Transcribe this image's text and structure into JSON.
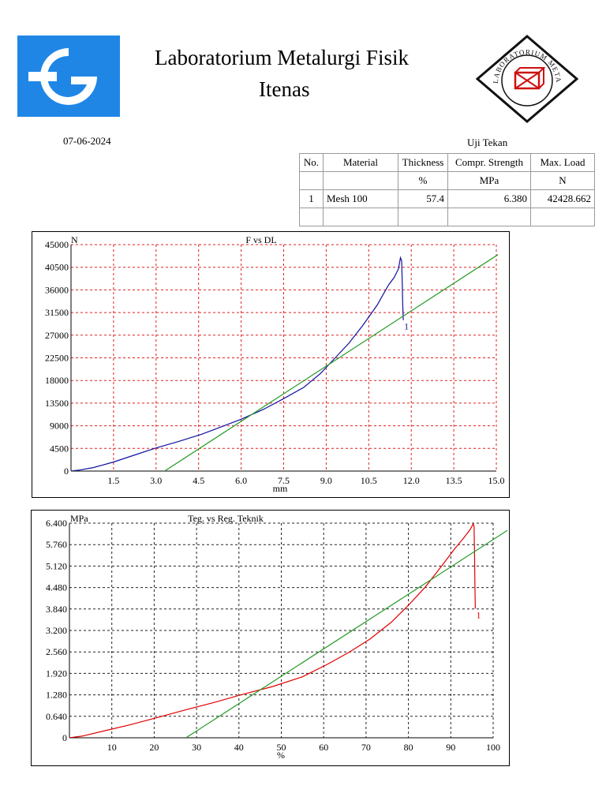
{
  "header": {
    "title_line1": "Laboratorium Metalurgi Fisik",
    "title_line2": "Itenas",
    "date": "07-06-2024",
    "seal_text": "LABORATORIUM METALURGI FISIK"
  },
  "results_table": {
    "title": "Uji Tekan",
    "headers": [
      [
        "No.",
        "Material",
        "Thickness",
        "Compr. Strength",
        "Max. Load"
      ],
      [
        "",
        "",
        "%",
        "MPa",
        "N"
      ]
    ],
    "rows": [
      [
        "1",
        "Mesh 100",
        "57.4",
        "6.380",
        "42428.662"
      ]
    ]
  },
  "colors": {
    "logo_blue": "#1f86e6",
    "grid_red": "#e02020",
    "grid_black": "#222222",
    "curve_blue": "#1010a0",
    "curve_red": "#e00000",
    "fit_green": "#229922"
  },
  "chart_data": [
    {
      "type": "line",
      "title": "F vs DL",
      "xlabel": "mm",
      "ylabel": "N",
      "xlim": [
        0,
        15.0
      ],
      "ylim": [
        0,
        45000
      ],
      "x_ticks": [
        "1.5",
        "3.0",
        "4.5",
        "6.0",
        "7.5",
        "9.0",
        "10.5",
        "12.0",
        "13.5",
        "15.0"
      ],
      "y_ticks": [
        "0",
        "4500",
        "9000",
        "13500",
        "18000",
        "22500",
        "27000",
        "31500",
        "36000",
        "40500",
        "45000"
      ],
      "grid": true,
      "series": [
        {
          "name": "1",
          "color": "#1010a0",
          "points": [
            [
              0,
              0
            ],
            [
              0.3,
              200
            ],
            [
              0.8,
              700
            ],
            [
              1.5,
              1800
            ],
            [
              2.3,
              3300
            ],
            [
              3.0,
              4600
            ],
            [
              3.8,
              5900
            ],
            [
              4.6,
              7300
            ],
            [
              5.3,
              8800
            ],
            [
              6.0,
              10300
            ],
            [
              6.8,
              12300
            ],
            [
              7.5,
              14400
            ],
            [
              8.2,
              16600
            ],
            [
              8.8,
              19400
            ],
            [
              9.3,
              22400
            ],
            [
              9.8,
              25400
            ],
            [
              10.3,
              29000
            ],
            [
              10.8,
              33000
            ],
            [
              11.2,
              37000
            ],
            [
              11.4,
              38500
            ],
            [
              11.55,
              40200
            ],
            [
              11.62,
              42400
            ],
            [
              11.66,
              41800
            ],
            [
              11.68,
              38000
            ],
            [
              11.7,
              33000
            ],
            [
              11.72,
              30000
            ]
          ]
        },
        {
          "name": "",
          "color": "#229922",
          "points": [
            [
              3.3,
              0
            ],
            [
              15.6,
              45000
            ]
          ]
        }
      ],
      "annotations": [
        "1"
      ]
    },
    {
      "type": "line",
      "title": "Teg. vs Reg. Teknik",
      "xlabel": "%",
      "ylabel": "MPa",
      "xlim": [
        0,
        100
      ],
      "ylim": [
        0,
        6.4
      ],
      "x_ticks": [
        "10",
        "20",
        "30",
        "40",
        "50",
        "60",
        "70",
        "80",
        "90",
        "100"
      ],
      "y_ticks": [
        "0",
        "0.640",
        "1.280",
        "1.920",
        "2.560",
        "3.200",
        "3.840",
        "4.480",
        "5.120",
        "5.760",
        "6.400"
      ],
      "grid": true,
      "series": [
        {
          "name": "1",
          "color": "#e00000",
          "points": [
            [
              0,
              0
            ],
            [
              3,
              0.05
            ],
            [
              8,
              0.2
            ],
            [
              14,
              0.38
            ],
            [
              20,
              0.58
            ],
            [
              27,
              0.82
            ],
            [
              34,
              1.05
            ],
            [
              41,
              1.3
            ],
            [
              48,
              1.53
            ],
            [
              55,
              1.82
            ],
            [
              61,
              2.2
            ],
            [
              66,
              2.55
            ],
            [
              71,
              2.95
            ],
            [
              76,
              3.45
            ],
            [
              80,
              3.95
            ],
            [
              84,
              4.5
            ],
            [
              88,
              5.15
            ],
            [
              91,
              5.65
            ],
            [
              93,
              5.95
            ],
            [
              94.5,
              6.2
            ],
            [
              95.3,
              6.38
            ],
            [
              95.5,
              6.3
            ],
            [
              95.6,
              5.5
            ],
            [
              95.7,
              4.5
            ],
            [
              95.8,
              3.85
            ]
          ]
        },
        {
          "name": "",
          "color": "#229922",
          "points": [
            [
              27.5,
              0
            ],
            [
              106,
              6.4
            ]
          ]
        }
      ],
      "annotations": [
        "1"
      ]
    }
  ]
}
